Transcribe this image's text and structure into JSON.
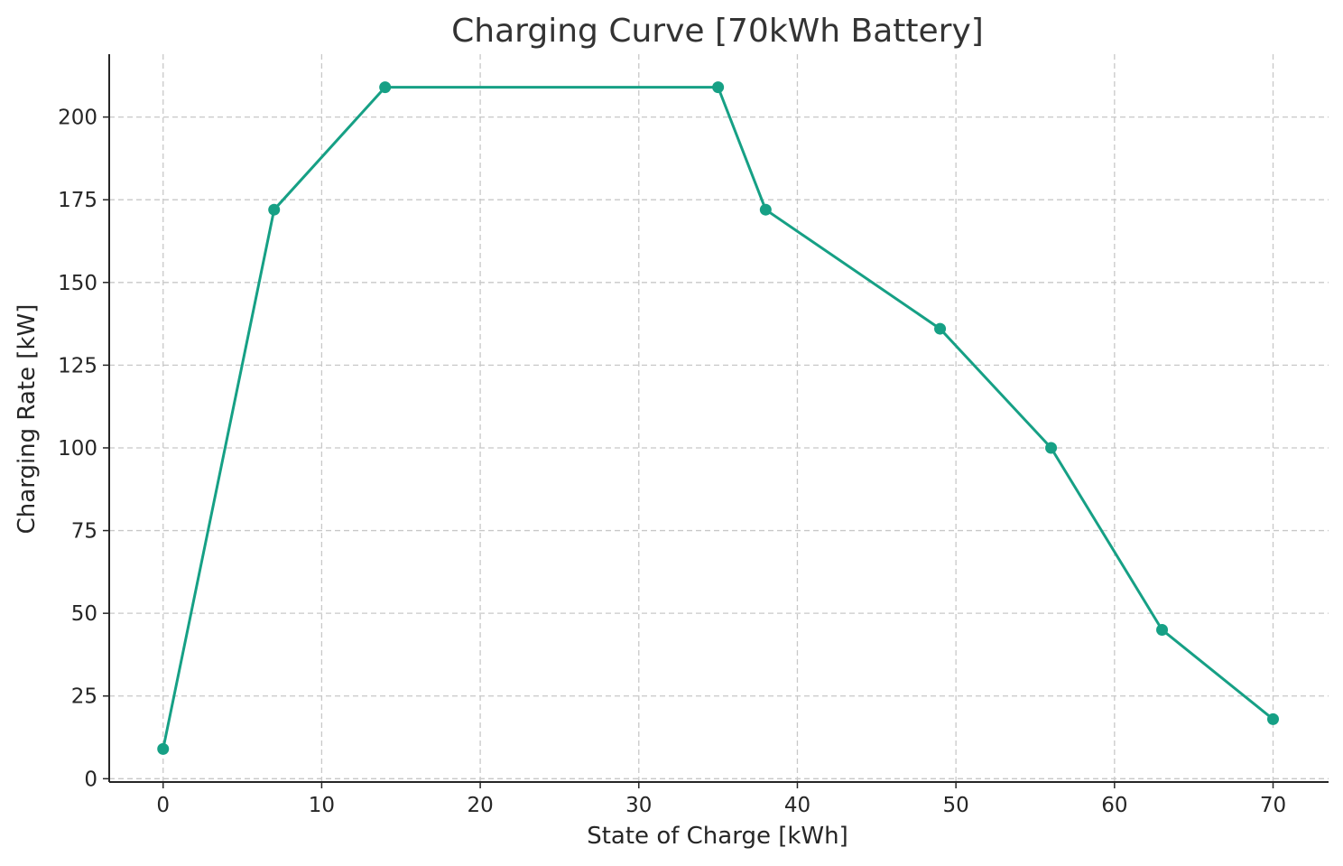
{
  "chart_data": {
    "type": "line",
    "title": "Charging Curve [70kWh Battery]",
    "xlabel": "State of Charge [kWh]",
    "ylabel": "Charging Rate [kW]",
    "xlim": [
      -3.4,
      73.5
    ],
    "ylim": [
      -1,
      219
    ],
    "xticks": [
      0,
      10,
      20,
      30,
      40,
      50,
      60,
      70
    ],
    "yticks": [
      0,
      25,
      50,
      75,
      100,
      125,
      150,
      175,
      200
    ],
    "grid": true,
    "series": [
      {
        "color": "#16a085",
        "x": [
          0,
          7,
          14,
          35,
          38,
          49,
          56,
          63,
          70
        ],
        "y": [
          9,
          172,
          209,
          209,
          172,
          136,
          100,
          45,
          18
        ]
      }
    ]
  }
}
